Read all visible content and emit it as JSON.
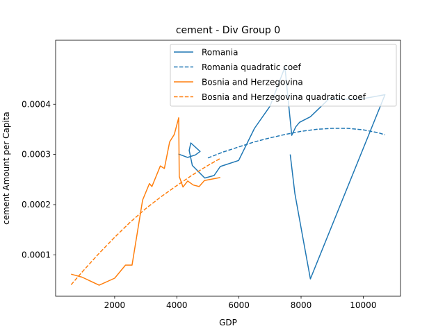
{
  "chart_data": {
    "type": "line",
    "title": "cement - Div Group 0",
    "xlabel": "GDP",
    "ylabel": "cement Amount per Capita",
    "xlim": [
      100,
      11200
    ],
    "ylim": [
      1.75e-05,
      0.0005275
    ],
    "x_ticks": [
      2000,
      4000,
      6000,
      8000,
      10000
    ],
    "y_ticks": [
      0.0001,
      0.0002,
      0.0003,
      0.0004
    ],
    "x_tick_labels": [
      "2000",
      "4000",
      "6000",
      "8000",
      "10000"
    ],
    "y_tick_labels": [
      "0.0001",
      "0.0002",
      "0.0003",
      "0.0004"
    ],
    "legend_position": "top-right",
    "grid": false,
    "series": [
      {
        "name": "Romania",
        "color": "#1f77b4",
        "style": "solid",
        "x": [
          4050,
          4350,
          4600,
          4750,
          4450,
          4400,
          4500,
          4900,
          5200,
          5400,
          5990,
          6500,
          7000,
          7480,
          7550,
          7700,
          7830,
          7950,
          8300,
          8920,
          9420,
          9900,
          10700,
          8300,
          8050,
          7800,
          7650
        ],
        "y": [
          0.000301,
          0.000294,
          0.000299,
          0.000306,
          0.000323,
          0.000308,
          0.000278,
          0.000253,
          0.000258,
          0.000276,
          0.000288,
          0.000352,
          0.000396,
          0.000474,
          0.00043,
          0.000338,
          0.000355,
          0.000364,
          0.000375,
          0.000412,
          0.00041,
          0.00041,
          0.000419,
          5.2e-05,
          0.000137,
          0.000222,
          0.0003
        ]
      },
      {
        "name": "Romania quadratic coef",
        "color": "#1f77b4",
        "style": "dashed",
        "x": [
          5000,
          5500,
          6000,
          6500,
          7000,
          7500,
          8000,
          8500,
          9000,
          9500,
          10000,
          10500,
          10700
        ],
        "y": [
          0.000293,
          0.000305,
          0.000315,
          0.000325,
          0.000333,
          0.00034,
          0.000346,
          0.00035,
          0.000352,
          0.000352,
          0.000349,
          0.000343,
          0.000339
        ]
      },
      {
        "name": "Bosnia and Herzegovina",
        "color": "#ff7f0e",
        "style": "solid",
        "x": [
          600,
          950,
          1500,
          2000,
          2350,
          2560,
          2900,
          3120,
          3200,
          3470,
          3600,
          3770,
          3920,
          4060,
          4080,
          4200,
          4350,
          4530,
          4720,
          4890,
          5060,
          5400
        ],
        "y": [
          6.15e-05,
          5.55e-05,
          3.95e-05,
          5.35e-05,
          7.95e-05,
          7.95e-05,
          0.000209,
          0.000242,
          0.000236,
          0.000277,
          0.000272,
          0.000325,
          0.00034,
          0.000373,
          0.000256,
          0.000235,
          0.000247,
          0.000239,
          0.000236,
          0.000248,
          0.00025,
          0.000254
        ]
      },
      {
        "name": "Bosnia and Herzegovina quadratic coef",
        "color": "#ff7f0e",
        "style": "dashed",
        "x": [
          600,
          1000,
          1500,
          2000,
          2500,
          3000,
          3500,
          4000,
          4500,
          5000,
          5400
        ],
        "y": [
          4.05e-05,
          6.9e-05,
          0.000103,
          0.000135,
          0.000165,
          0.000192,
          0.000216,
          0.000238,
          0.000259,
          0.000278,
          0.000292
        ]
      }
    ]
  }
}
